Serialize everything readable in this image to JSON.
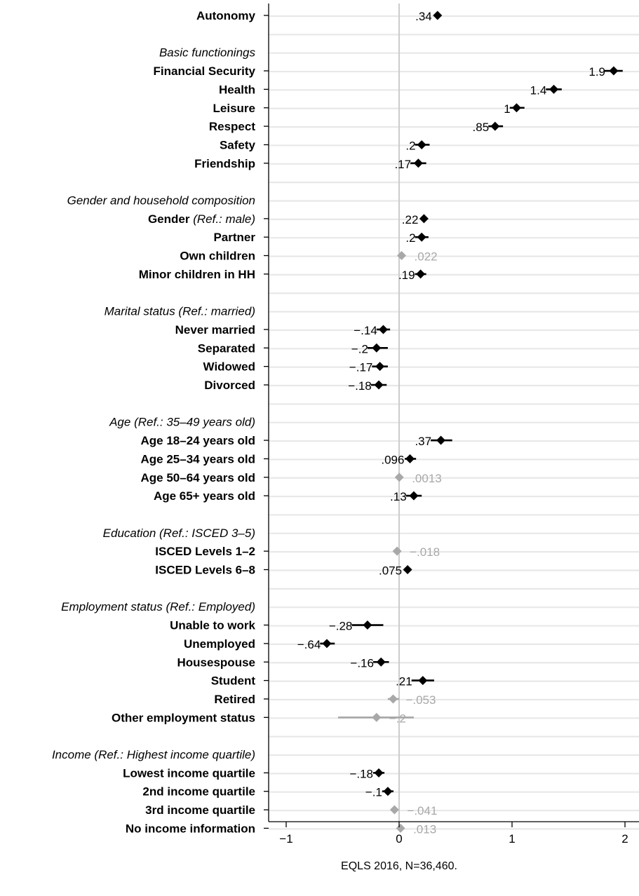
{
  "chart_data": {
    "type": "coefficient_plot",
    "caption": "EQLS 2016, N=36,460.",
    "xlim": [
      -1.1,
      2.05
    ],
    "xticks": [
      {
        "value": -1,
        "label": "−1"
      },
      {
        "value": 0,
        "label": "0"
      },
      {
        "value": 1,
        "label": "1"
      },
      {
        "value": 2,
        "label": "2"
      }
    ],
    "reference_line": 0,
    "grid": "horizontal",
    "colors": {
      "significant": "#000000",
      "non_significant": "#a8a8a8",
      "grid": "#e8e8e8",
      "ref_line": "#cccccc"
    },
    "rows": [
      {
        "label": "Autonomy",
        "kind": "item",
        "est": 0.34,
        "lo": 0.34,
        "hi": 0.34,
        "value_label": ".34",
        "significant": true
      },
      {
        "label": "",
        "kind": "blank"
      },
      {
        "label": "Basic functionings",
        "kind": "header"
      },
      {
        "label": "Financial Security",
        "kind": "item",
        "est": 1.9,
        "lo": 1.82,
        "hi": 1.98,
        "value_label": "1.9",
        "significant": true
      },
      {
        "label": "Health",
        "kind": "item",
        "est": 1.37,
        "lo": 1.3,
        "hi": 1.44,
        "value_label": "1.4",
        "significant": true
      },
      {
        "label": "Leisure",
        "kind": "item",
        "est": 1.04,
        "lo": 0.98,
        "hi": 1.11,
        "value_label": "1",
        "significant": true
      },
      {
        "label": "Respect",
        "kind": "item",
        "est": 0.85,
        "lo": 0.79,
        "hi": 0.92,
        "value_label": ".85",
        "significant": true
      },
      {
        "label": "Safety",
        "kind": "item",
        "est": 0.2,
        "lo": 0.14,
        "hi": 0.27,
        "value_label": ".2",
        "significant": true
      },
      {
        "label": "Friendship",
        "kind": "item",
        "est": 0.17,
        "lo": 0.1,
        "hi": 0.24,
        "value_label": ".17",
        "significant": true
      },
      {
        "label": "",
        "kind": "blank"
      },
      {
        "label": "Gender and household composition",
        "kind": "header"
      },
      {
        "label": "Gender",
        "ref": "(Ref.: male)",
        "kind": "item",
        "est": 0.22,
        "lo": 0.22,
        "hi": 0.22,
        "value_label": ".22",
        "significant": true
      },
      {
        "label": "Partner",
        "kind": "item",
        "est": 0.2,
        "lo": 0.14,
        "hi": 0.26,
        "value_label": ".2",
        "significant": true
      },
      {
        "label": "Own children",
        "kind": "item",
        "est": 0.022,
        "lo": 0.022,
        "hi": 0.022,
        "value_label": ".022",
        "significant": false
      },
      {
        "label": "Minor children in HH",
        "kind": "item",
        "est": 0.19,
        "lo": 0.14,
        "hi": 0.24,
        "value_label": ".19",
        "significant": true
      },
      {
        "label": "",
        "kind": "blank"
      },
      {
        "label": "Marital status (Ref.: married)",
        "kind": "header"
      },
      {
        "label": "Never married",
        "kind": "item",
        "est": -0.14,
        "lo": -0.2,
        "hi": -0.08,
        "value_label": "−.14",
        "significant": true
      },
      {
        "label": "Separated",
        "kind": "item",
        "est": -0.2,
        "lo": -0.28,
        "hi": -0.1,
        "value_label": "−.2",
        "significant": true
      },
      {
        "label": "Widowed",
        "kind": "item",
        "est": -0.17,
        "lo": -0.24,
        "hi": -0.1,
        "value_label": "−.17",
        "significant": true
      },
      {
        "label": "Divorced",
        "kind": "item",
        "est": -0.18,
        "lo": -0.25,
        "hi": -0.11,
        "value_label": "−.18",
        "significant": true
      },
      {
        "label": "",
        "kind": "blank"
      },
      {
        "label": "Age (Ref.: 35–49 years old)",
        "kind": "header"
      },
      {
        "label": "Age 18–24 years old",
        "kind": "item",
        "est": 0.37,
        "lo": 0.28,
        "hi": 0.47,
        "value_label": ".37",
        "significant": true
      },
      {
        "label": "Age 25–34 years old",
        "kind": "item",
        "est": 0.096,
        "lo": 0.05,
        "hi": 0.15,
        "value_label": ".096",
        "significant": true
      },
      {
        "label": "Age 50–64 years old",
        "kind": "item",
        "est": 0.0013,
        "lo": 0.0013,
        "hi": 0.0013,
        "value_label": ".0013",
        "significant": false
      },
      {
        "label": "Age 65+ years old",
        "kind": "item",
        "est": 0.13,
        "lo": 0.06,
        "hi": 0.2,
        "value_label": ".13",
        "significant": true
      },
      {
        "label": "",
        "kind": "blank"
      },
      {
        "label": "Education (Ref.: ISCED 3–5)",
        "kind": "header"
      },
      {
        "label": "ISCED Levels 1–2",
        "kind": "item",
        "est": -0.018,
        "lo": -0.018,
        "hi": -0.018,
        "value_label": "−.018",
        "significant": false
      },
      {
        "label": "ISCED Levels 6–8",
        "kind": "item",
        "est": 0.075,
        "lo": 0.075,
        "hi": 0.075,
        "value_label": ".075",
        "significant": true
      },
      {
        "label": "",
        "kind": "blank"
      },
      {
        "label": "Employment status (Ref.: Employed)",
        "kind": "header"
      },
      {
        "label": "Unable to work",
        "kind": "item",
        "est": -0.28,
        "lo": -0.42,
        "hi": -0.14,
        "value_label": "−.28",
        "significant": true
      },
      {
        "label": "Unemployed",
        "kind": "item",
        "est": -0.64,
        "lo": -0.7,
        "hi": -0.57,
        "value_label": "−.64",
        "significant": true
      },
      {
        "label": "Housespouse",
        "kind": "item",
        "est": -0.16,
        "lo": -0.23,
        "hi": -0.09,
        "value_label": "−.16",
        "significant": true
      },
      {
        "label": "Student",
        "kind": "item",
        "est": 0.21,
        "lo": 0.11,
        "hi": 0.31,
        "value_label": ".21",
        "significant": true
      },
      {
        "label": "Retired",
        "kind": "item",
        "est": -0.053,
        "lo": -0.1,
        "hi": 0.0,
        "value_label": "−.053",
        "significant": false
      },
      {
        "label": "Other employment status",
        "kind": "item",
        "est": -0.2,
        "lo": -0.54,
        "hi": 0.13,
        "value_label": "−.2",
        "significant": false
      },
      {
        "label": "",
        "kind": "blank"
      },
      {
        "label": "Income (Ref.: Highest income quartile)",
        "kind": "header"
      },
      {
        "label": "Lowest income quartile",
        "kind": "item",
        "est": -0.18,
        "lo": -0.23,
        "hi": -0.13,
        "value_label": "−.18",
        "significant": true
      },
      {
        "label": "2nd income quartile",
        "kind": "item",
        "est": -0.1,
        "lo": -0.15,
        "hi": -0.05,
        "value_label": "−.1",
        "significant": true
      },
      {
        "label": "3rd income quartile",
        "kind": "item",
        "est": -0.041,
        "lo": -0.041,
        "hi": -0.041,
        "value_label": "−.041",
        "significant": false
      },
      {
        "label": "No income information",
        "kind": "item",
        "est": 0.013,
        "lo": 0.013,
        "hi": 0.013,
        "value_label": ".013",
        "significant": false
      }
    ]
  }
}
